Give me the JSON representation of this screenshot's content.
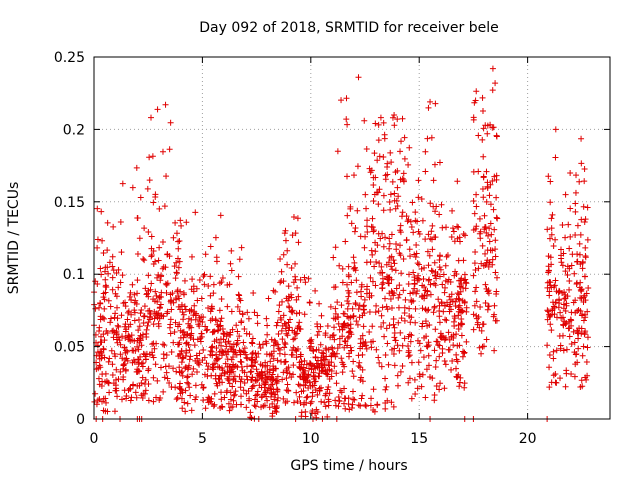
{
  "chart_data": {
    "type": "scatter",
    "title": "Day 092 of 2018, SRMTID for receiver bele",
    "xlabel": "GPS time / hours",
    "ylabel": "SRMTID / TECUs",
    "xlim": [
      0,
      23.8
    ],
    "ylim": [
      0,
      0.25
    ],
    "x_ticks": [
      0,
      5,
      10,
      15,
      20
    ],
    "x_tick_labels": [
      "0",
      "5",
      "10",
      "15",
      "20"
    ],
    "y_ticks": [
      0,
      0.05,
      0.1,
      0.15,
      0.2,
      0.25
    ],
    "y_tick_labels": [
      "0",
      "0.05",
      "0.1",
      "0.15",
      "0.2",
      "0.25"
    ],
    "grid": true,
    "marker": "plus",
    "marker_color": "#e00000",
    "series": [
      {
        "name": "SRMTID",
        "envelope_description": "Dense cloud of '+' markers; typical values per hour band",
        "bands": [
          {
            "x_start": 0.0,
            "x_end": 1.0,
            "y_min": 0.005,
            "y_max": 0.175,
            "center": 0.06
          },
          {
            "x_start": 1.0,
            "x_end": 2.5,
            "y_min": 0.01,
            "y_max": 0.18,
            "center": 0.05
          },
          {
            "x_start": 2.5,
            "x_end": 4.0,
            "y_min": 0.01,
            "y_max": 0.217,
            "center": 0.08
          },
          {
            "x_start": 4.0,
            "x_end": 6.0,
            "y_min": 0.005,
            "y_max": 0.145,
            "center": 0.05
          },
          {
            "x_start": 6.0,
            "x_end": 7.0,
            "y_min": 0.005,
            "y_max": 0.12,
            "center": 0.04
          },
          {
            "x_start": 7.0,
            "x_end": 8.5,
            "y_min": 0.0,
            "y_max": 0.09,
            "center": 0.03
          },
          {
            "x_start": 8.5,
            "x_end": 9.5,
            "y_min": 0.01,
            "y_max": 0.142,
            "center": 0.06
          },
          {
            "x_start": 9.5,
            "x_end": 11.0,
            "y_min": 0.0,
            "y_max": 0.1,
            "center": 0.03
          },
          {
            "x_start": 11.0,
            "x_end": 12.5,
            "y_min": 0.005,
            "y_max": 0.236,
            "center": 0.06
          },
          {
            "x_start": 12.5,
            "x_end": 14.5,
            "y_min": 0.005,
            "y_max": 0.21,
            "center": 0.1
          },
          {
            "x_start": 14.5,
            "x_end": 16.0,
            "y_min": 0.01,
            "y_max": 0.22,
            "center": 0.08
          },
          {
            "x_start": 16.0,
            "x_end": 17.2,
            "y_min": 0.02,
            "y_max": 0.17,
            "center": 0.07
          },
          {
            "x_start": 17.5,
            "x_end": 18.6,
            "y_min": 0.045,
            "y_max": 0.242,
            "center": 0.12
          },
          {
            "x_start": 20.9,
            "x_end": 22.8,
            "y_min": 0.022,
            "y_max": 0.2,
            "center": 0.08
          }
        ],
        "notable_points": [
          {
            "x": 12.2,
            "y": 0.236
          },
          {
            "x": 18.4,
            "y": 0.242
          },
          {
            "x": 18.5,
            "y": 0.232
          },
          {
            "x": 3.3,
            "y": 0.217
          },
          {
            "x": 15.5,
            "y": 0.219
          },
          {
            "x": 17.6,
            "y": 0.22
          },
          {
            "x": 21.3,
            "y": 0.2
          },
          {
            "x": 21.0,
            "y": 0.022
          }
        ],
        "zero_points_x": [
          0.1,
          0.4,
          1.2,
          2.0,
          2.1,
          2.2,
          7.6,
          9.3,
          10.1,
          11.2,
          15.5,
          17.1,
          17.5,
          20.9
        ]
      }
    ]
  }
}
